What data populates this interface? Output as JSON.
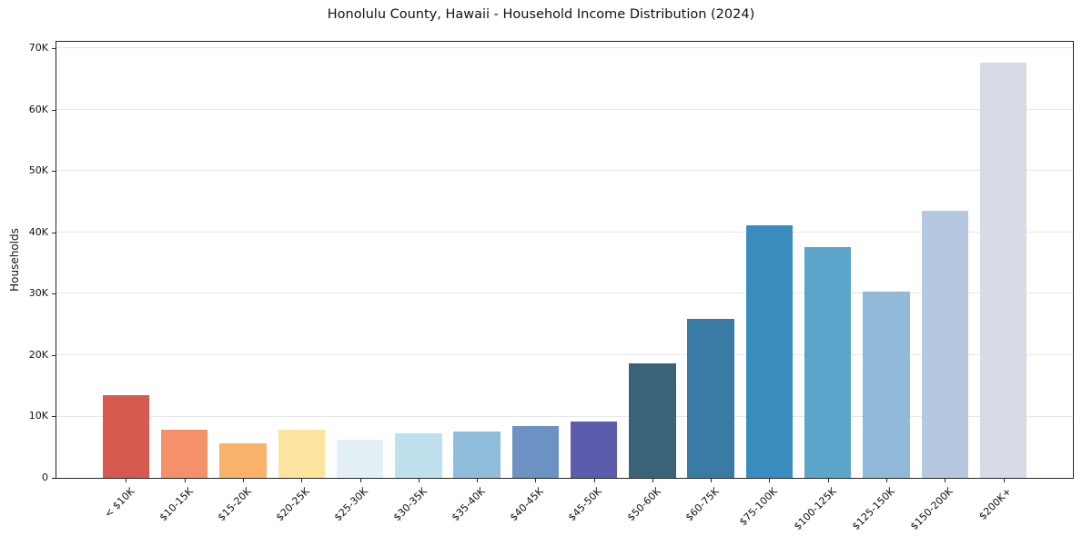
{
  "chart_data": {
    "type": "bar",
    "title": "Honolulu County, Hawaii - Household Income Distribution (2024)",
    "xlabel": "",
    "ylabel": "Households",
    "categories": [
      "< $10K",
      "$10-15K",
      "$15-20K",
      "$20-25K",
      "$25-30K",
      "$30-35K",
      "$35-40K",
      "$40-45K",
      "$45-50K",
      "$50-60K",
      "$60-75K",
      "$75-100K",
      "$100-125K",
      "$125-150K",
      "$150-200K",
      "$200K+"
    ],
    "values": [
      13500,
      7900,
      5700,
      7800,
      6200,
      7300,
      7600,
      8400,
      9200,
      18600,
      25900,
      41200,
      37700,
      30300,
      43500,
      67700
    ],
    "bar_colors": [
      "#d65a50",
      "#f4906a",
      "#f9b26a",
      "#fde49e",
      "#e3f1f4",
      "#bfe0ed",
      "#90bcdb",
      "#6c92c4",
      "#5b5cab",
      "#3a6378",
      "#3a7ba5",
      "#398dbe",
      "#5ba5ca",
      "#90b9da",
      "#b6c7e0",
      "#d8dae7"
    ],
    "ylim": [
      0,
      71100
    ],
    "yticks": [
      0,
      10000,
      20000,
      30000,
      40000,
      50000,
      60000,
      70000
    ],
    "ytick_labels": [
      "0",
      "10K",
      "20K",
      "30K",
      "40K",
      "50K",
      "60K",
      "70K"
    ],
    "grid": "horizontal-only",
    "legend": "none",
    "background": "#ffffff",
    "axis_color": "#262626",
    "gridline_color": "#e7e7e7"
  }
}
